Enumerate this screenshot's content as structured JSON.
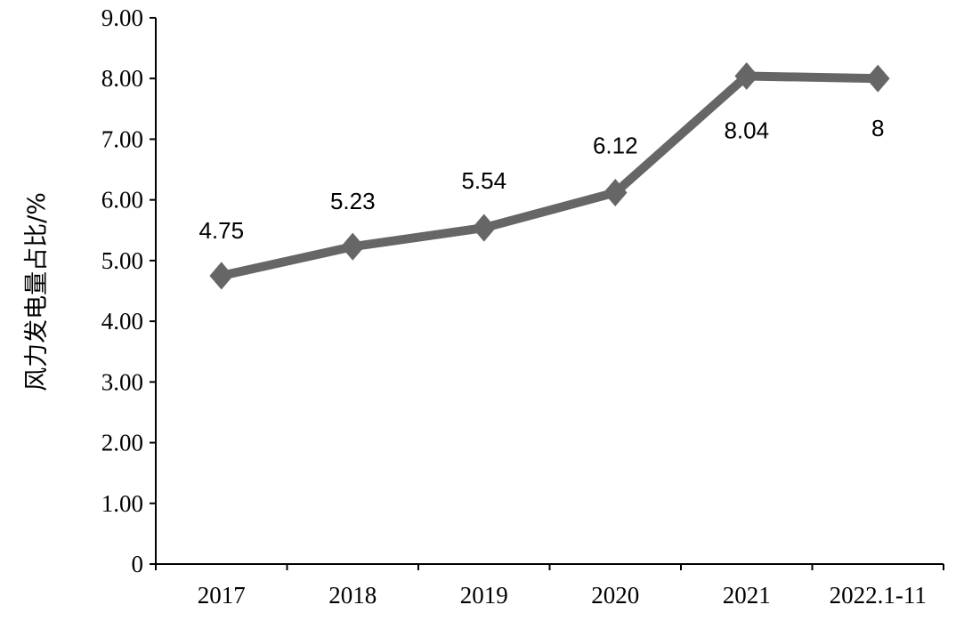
{
  "chart_data": {
    "type": "line",
    "title": "",
    "xlabel": "",
    "ylabel": "风力发电量占比/%",
    "categories": [
      "2017",
      "2018",
      "2019",
      "2020",
      "2021",
      "2022.1-11"
    ],
    "series": [
      {
        "values": [
          4.75,
          5.23,
          5.54,
          6.12,
          8.04,
          8
        ]
      }
    ],
    "data_labels": [
      "4.75",
      "5.23",
      "5.54",
      "6.12",
      "8.04",
      "8"
    ],
    "y_ticks": [
      "0",
      "1.00",
      "2.00",
      "3.00",
      "4.00",
      "5.00",
      "6.00",
      "7.00",
      "8.00",
      "9.00"
    ],
    "ylim": [
      0,
      9
    ],
    "grid": false,
    "legend": "none",
    "colors": {
      "line": "#666666",
      "marker": "#666666",
      "axis": "#000000"
    }
  }
}
